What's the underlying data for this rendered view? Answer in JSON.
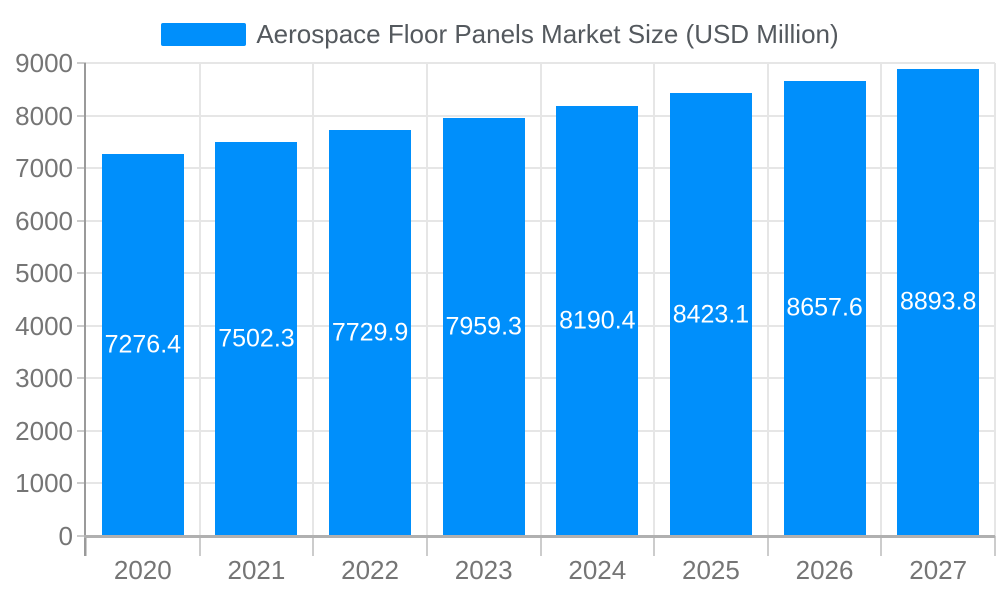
{
  "legend": {
    "label": "Aerospace Floor Panels Market Size (USD Million)"
  },
  "chart_data": {
    "type": "bar",
    "title": "Aerospace Floor Panels Market Size (USD Million)",
    "categories": [
      "2020",
      "2021",
      "2022",
      "2023",
      "2024",
      "2025",
      "2026",
      "2027"
    ],
    "values": [
      7276.4,
      7502.3,
      7729.9,
      7959.3,
      8190.4,
      8423.1,
      8657.6,
      8893.8
    ],
    "value_labels": [
      "7276.4",
      "7502.3",
      "7729.9",
      "7959.3",
      "8190.4",
      "8423.1",
      "8657.6",
      "8893.8"
    ],
    "xlabel": "",
    "ylabel": "",
    "ylim": [
      0,
      9000
    ],
    "ytick_step": 1000,
    "y_tick_labels": [
      "0",
      "1000",
      "2000",
      "3000",
      "4000",
      "5000",
      "6000",
      "7000",
      "8000",
      "9000"
    ],
    "grid": true,
    "legend_position": "top",
    "colors": {
      "bar": "#008FFB",
      "bar_value_label": "#ffffff",
      "legend_text": "#54595e",
      "axis_label": "#757575",
      "gridline": "#e6e6e6",
      "x_axis_line": "#b0b0b0",
      "y_axis_line": "#9a9a9a",
      "tick": "#cccccc",
      "background": "#ffffff"
    }
  }
}
